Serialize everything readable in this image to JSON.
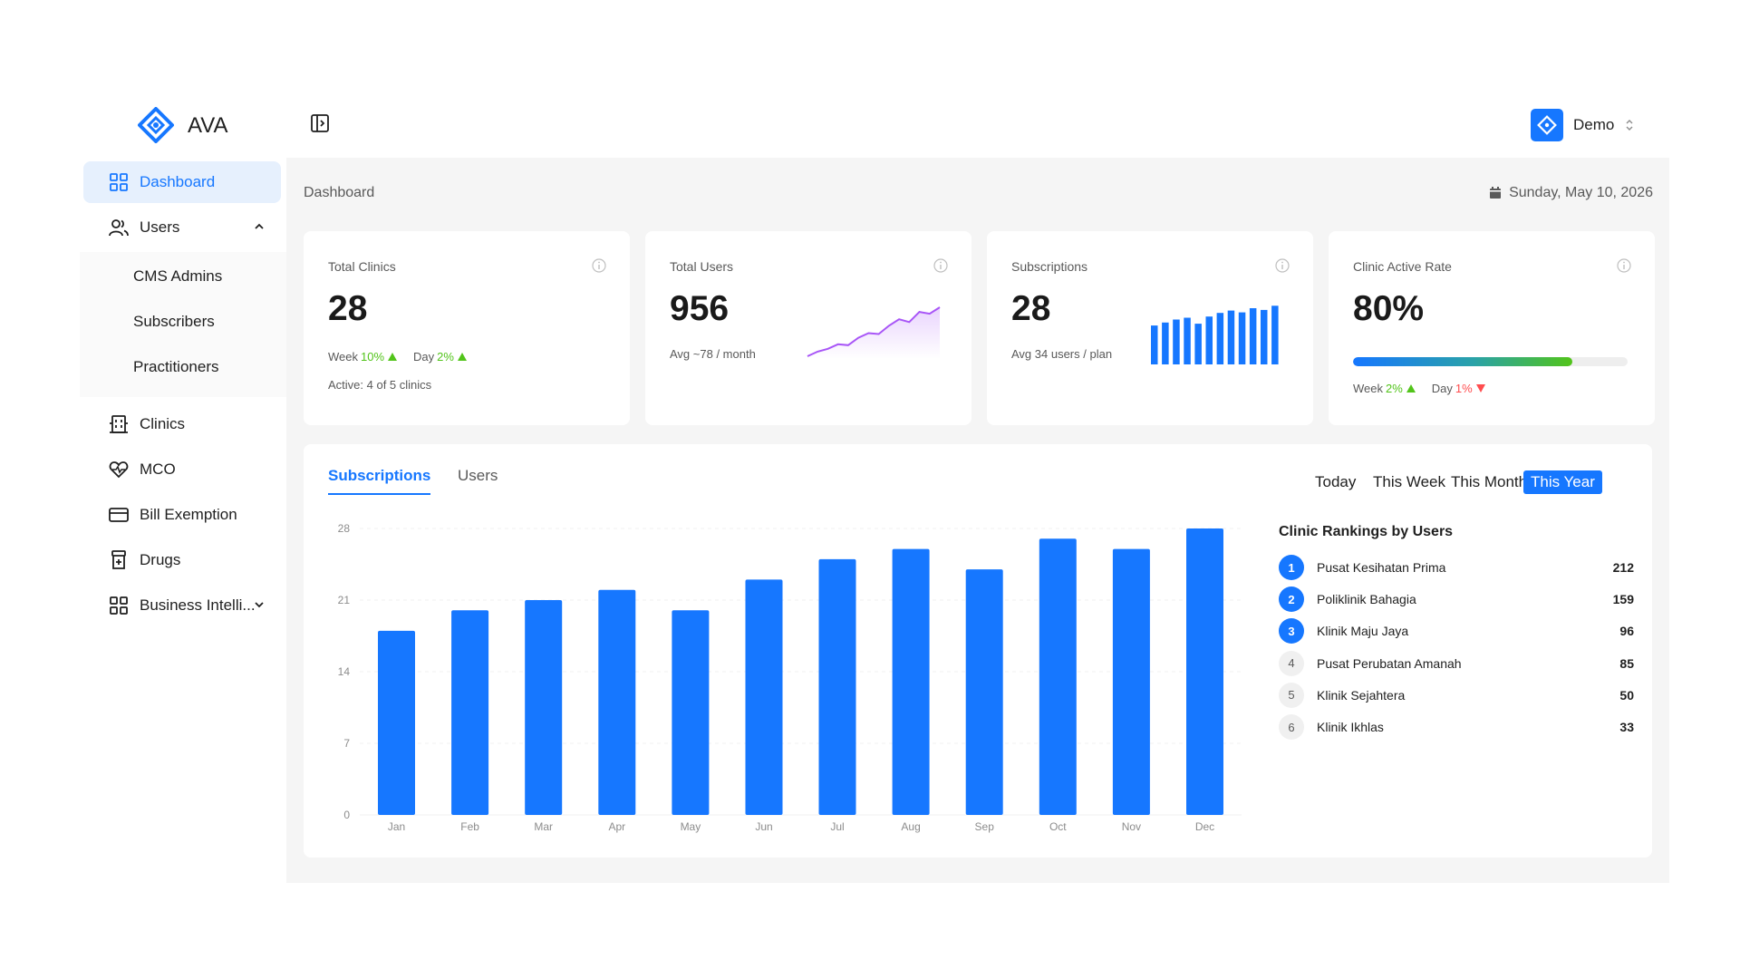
{
  "app": {
    "brand": "AVA"
  },
  "user": {
    "name": "Demo"
  },
  "sidebar": {
    "items": [
      {
        "label": "Dashboard"
      },
      {
        "label": "Users"
      },
      {
        "label": "Clinics"
      },
      {
        "label": "MCO"
      },
      {
        "label": "Bill Exemption"
      },
      {
        "label": "Drugs"
      },
      {
        "label": "Business Intelli..."
      }
    ],
    "users_sub": [
      "CMS Admins",
      "Subscribers",
      "Practitioners"
    ]
  },
  "header": {
    "breadcrumb": "Dashboard",
    "date": "Sunday, May 10, 2026"
  },
  "stats": {
    "clinics": {
      "title": "Total Clinics",
      "value": "28",
      "week_label": "Week",
      "week_value": "10%",
      "day_label": "Day",
      "day_value": "2%",
      "active": "Active: 4 of 5 clinics"
    },
    "users": {
      "title": "Total Users",
      "value": "956",
      "avg": "Avg ~78 / month"
    },
    "subs": {
      "title": "Subscriptions",
      "value": "28",
      "avg": "Avg 34 users / plan"
    },
    "rate": {
      "title": "Clinic Active Rate",
      "value": "80%",
      "progress": 0.8,
      "week_label": "Week",
      "week_value": "2%",
      "day_label": "Day",
      "day_value": "1%"
    }
  },
  "tabs": [
    "Subscriptions",
    "Users"
  ],
  "ranges": [
    "Today",
    "This Week",
    "This Month",
    "This Year"
  ],
  "chart_data": {
    "type": "bar",
    "categories": [
      "Jan",
      "Feb",
      "Mar",
      "Apr",
      "May",
      "Jun",
      "Jul",
      "Aug",
      "Sep",
      "Oct",
      "Nov",
      "Dec"
    ],
    "values": [
      18,
      20,
      21,
      22,
      20,
      23,
      25,
      26,
      24,
      27,
      26,
      28
    ],
    "ylim": [
      0,
      28
    ],
    "yticks": [
      0,
      7,
      14,
      21,
      28
    ],
    "color": "#1677ff",
    "grid": true
  },
  "spark_users": {
    "values": [
      2,
      7,
      10,
      15,
      14,
      22,
      27,
      26,
      35,
      42,
      39,
      50,
      48,
      55
    ]
  },
  "mini_bars_subs": {
    "values": [
      0.65,
      0.7,
      0.75,
      0.78,
      0.68,
      0.8,
      0.86,
      0.9,
      0.87,
      0.94,
      0.91,
      0.98
    ]
  },
  "rankings": {
    "title": "Clinic Rankings by Users",
    "items": [
      {
        "rank": "1",
        "name": "Pusat Kesihatan Prima",
        "value": "212"
      },
      {
        "rank": "2",
        "name": "Poliklinik Bahagia",
        "value": "159"
      },
      {
        "rank": "3",
        "name": "Klinik Maju Jaya",
        "value": "96"
      },
      {
        "rank": "4",
        "name": "Pusat Perubatan Amanah",
        "value": "85"
      },
      {
        "rank": "5",
        "name": "Klinik Sejahtera",
        "value": "50"
      },
      {
        "rank": "6",
        "name": "Klinik Ikhlas",
        "value": "33"
      }
    ]
  },
  "colors": {
    "accent": "#1677ff",
    "up": "#52c41a",
    "down": "#ff4d4f",
    "spark": "#a855f7"
  },
  "icons": [
    "ava-logo-icon",
    "sidebar-toggle-icon",
    "dashboard-icon",
    "users-icon",
    "clinics-icon",
    "heart-icon",
    "card-icon",
    "drugs-icon",
    "bi-icon",
    "calendar-icon",
    "info-icon"
  ]
}
